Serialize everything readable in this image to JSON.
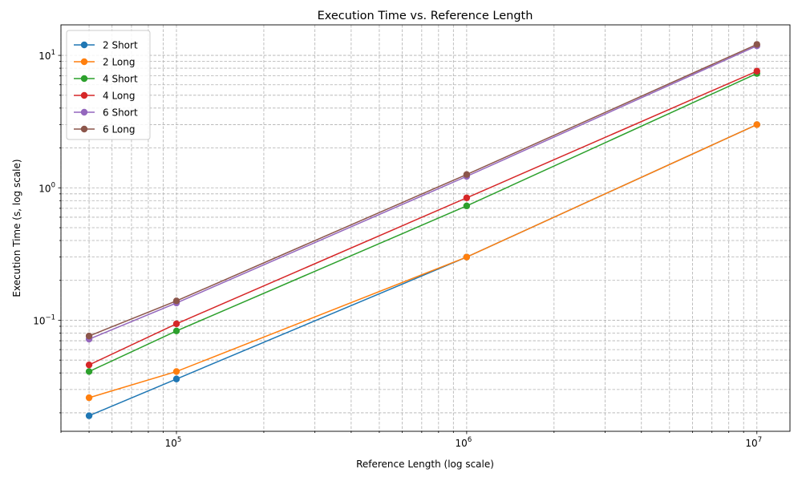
{
  "chart_data": {
    "type": "line",
    "title": "Execution Time vs. Reference Length",
    "xlabel": "Reference Length (log scale)",
    "ylabel": "Execution Time (s, log scale)",
    "xscale": "log",
    "yscale": "log",
    "xlim": [
      40000,
      13000000
    ],
    "ylim": [
      0.0145,
      17
    ],
    "grid": true,
    "legend_position": "top-left",
    "x": [
      50000,
      100000,
      1000000,
      10000000
    ],
    "x_ticks": [
      {
        "base": "10",
        "exp": "5"
      },
      {
        "base": "10",
        "exp": "6"
      },
      {
        "base": "10",
        "exp": "7"
      }
    ],
    "y_ticks": [
      {
        "base": "10",
        "exp": "−1"
      },
      {
        "base": "10",
        "exp": "0"
      },
      {
        "base": "10",
        "exp": "1"
      }
    ],
    "series": [
      {
        "name": "2 Short",
        "color": "#1f77b4",
        "values": [
          0.019,
          0.036,
          0.3,
          3.0
        ]
      },
      {
        "name": "2 Long",
        "color": "#ff7f0e",
        "values": [
          0.026,
          0.041,
          0.3,
          3.0
        ]
      },
      {
        "name": "4 Short",
        "color": "#2ca02c",
        "values": [
          0.041,
          0.083,
          0.73,
          7.3
        ]
      },
      {
        "name": "4 Long",
        "color": "#d62728",
        "values": [
          0.046,
          0.094,
          0.84,
          7.6
        ]
      },
      {
        "name": "6 Short",
        "color": "#9467bd",
        "values": [
          0.072,
          0.135,
          1.22,
          11.8
        ]
      },
      {
        "name": "6 Long",
        "color": "#8c564b",
        "values": [
          0.076,
          0.14,
          1.26,
          12.1
        ]
      }
    ]
  }
}
